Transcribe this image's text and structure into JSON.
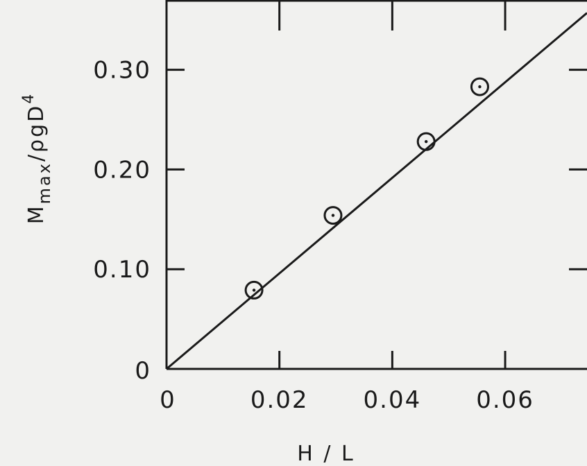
{
  "colors": {
    "background": "#f1f1ef",
    "ink": "#1a1a1a"
  },
  "chart_data": {
    "type": "scatter",
    "title": "",
    "xlabel": "H / L",
    "ylabel": {
      "main": "M",
      "subscript": "max",
      "rest": "/ρgD",
      "superscript": "4"
    },
    "xlim": [
      0,
      0.0745
    ],
    "ylim": [
      0,
      0.37
    ],
    "x_ticks": [
      {
        "value": 0,
        "label": "0"
      },
      {
        "value": 0.02,
        "label": "0.02"
      },
      {
        "value": 0.04,
        "label": "0.04"
      },
      {
        "value": 0.06,
        "label": "0.06"
      }
    ],
    "y_ticks": [
      {
        "value": 0,
        "label": "0"
      },
      {
        "value": 0.1,
        "label": "0.10"
      },
      {
        "value": 0.2,
        "label": "0.20"
      },
      {
        "value": 0.3,
        "label": "0.30"
      }
    ],
    "grid": false,
    "legend": "none",
    "series": [
      {
        "type": "scatter",
        "marker": "circled-dot",
        "x": [
          0.0155,
          0.0295,
          0.046,
          0.0555
        ],
        "y": [
          0.079,
          0.154,
          0.228,
          0.283
        ]
      },
      {
        "type": "line",
        "x": [
          0,
          0.0745
        ],
        "y": [
          0,
          0.357
        ]
      }
    ]
  }
}
